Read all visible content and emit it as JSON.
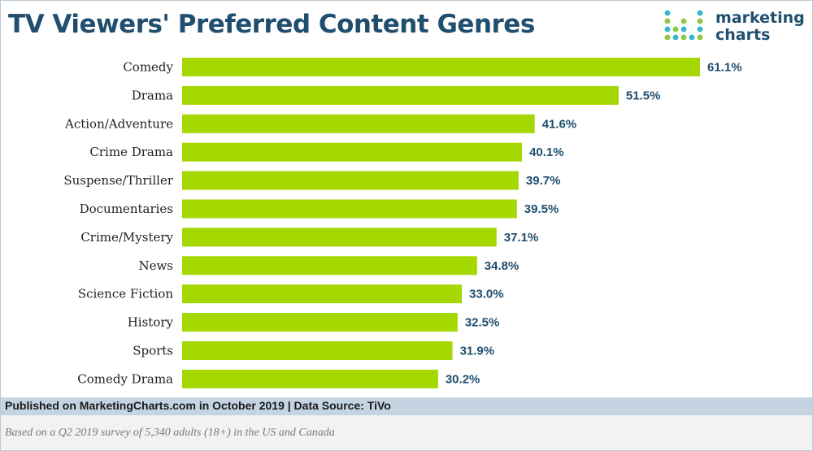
{
  "header": {
    "title": "TV Viewers' Preferred Content Genres",
    "logo": {
      "line1": "marketing",
      "line2": "charts",
      "colors": [
        "#34b3cf",
        "#8cc63f",
        "#1f4e6e"
      ]
    }
  },
  "chart_data": {
    "type": "bar",
    "orientation": "horizontal",
    "title": "TV Viewers' Preferred Content Genres",
    "categories": [
      "Comedy",
      "Drama",
      "Action/Adventure",
      "Crime Drama",
      "Suspense/Thriller",
      "Documentaries",
      "Crime/Mystery",
      "News",
      "Science Fiction",
      "History",
      "Sports",
      "Comedy Drama"
    ],
    "values": [
      61.1,
      51.5,
      41.6,
      40.1,
      39.7,
      39.5,
      37.1,
      34.8,
      33.0,
      32.5,
      31.9,
      30.2
    ],
    "value_labels": [
      "61.1%",
      "51.5%",
      "41.6%",
      "40.1%",
      "39.7%",
      "39.5%",
      "37.1%",
      "34.8%",
      "33.0%",
      "32.5%",
      "31.9%",
      "30.2%"
    ],
    "unit": "%",
    "xlim": [
      0,
      61.1
    ],
    "grid": false,
    "bar_color": "#a4d800",
    "label_color": "#1f4e6e"
  },
  "footer": {
    "source": "Published on MarketingCharts.com in October 2019 | Data Source: TiVo",
    "note": "Based on a Q2 2019 survey of 5,340 adults (18+) in the US and Canada"
  }
}
